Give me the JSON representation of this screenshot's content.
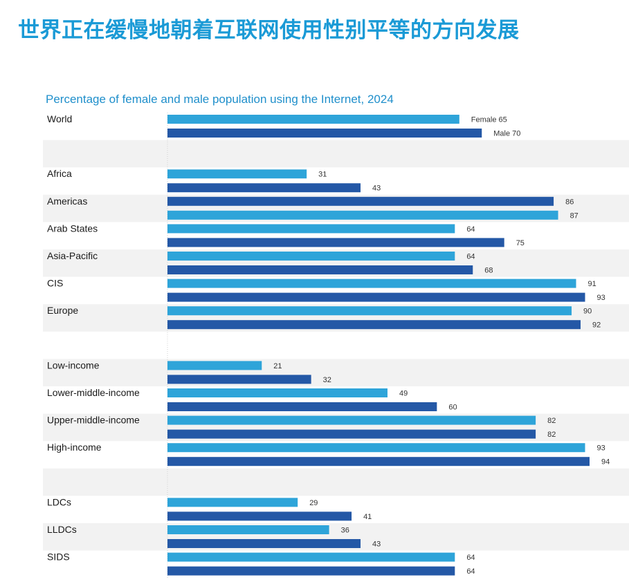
{
  "title": "世界正在缓慢地朝着互联网使用性别平等的方向发展",
  "chart_data": {
    "type": "bar",
    "orientation": "horizontal",
    "title": "Percentage of female and male population using the Internet, 2024",
    "xlim": [
      0,
      100
    ],
    "colors": {
      "light": "#2ea4d9",
      "dark": "#2458a6"
    },
    "groups": [
      {
        "category": "World",
        "bars": [
          {
            "label": "Female",
            "value": 65,
            "color": "light"
          },
          {
            "label": "Male",
            "value": 70,
            "color": "dark"
          }
        ]
      },
      {
        "category": "",
        "spacer": true
      },
      {
        "category": "Africa",
        "bars": [
          {
            "label": "",
            "value": 31,
            "color": "light"
          },
          {
            "label": "",
            "value": 43,
            "color": "dark"
          }
        ]
      },
      {
        "category": "Americas",
        "bars": [
          {
            "label": "",
            "value": 86,
            "color": "dark"
          },
          {
            "label": "",
            "value": 87,
            "color": "light"
          }
        ]
      },
      {
        "category": "Arab States",
        "bars": [
          {
            "label": "",
            "value": 64,
            "color": "light"
          },
          {
            "label": "",
            "value": 75,
            "color": "dark"
          }
        ]
      },
      {
        "category": "Asia-Pacific",
        "bars": [
          {
            "label": "",
            "value": 64,
            "color": "light"
          },
          {
            "label": "",
            "value": 68,
            "color": "dark"
          }
        ]
      },
      {
        "category": "CIS",
        "bars": [
          {
            "label": "",
            "value": 91,
            "color": "light"
          },
          {
            "label": "",
            "value": 93,
            "color": "dark"
          }
        ]
      },
      {
        "category": "Europe",
        "bars": [
          {
            "label": "",
            "value": 90,
            "color": "light"
          },
          {
            "label": "",
            "value": 92,
            "color": "dark"
          }
        ]
      },
      {
        "category": "",
        "spacer": true
      },
      {
        "category": "Low-income",
        "bars": [
          {
            "label": "",
            "value": 21,
            "color": "light"
          },
          {
            "label": "",
            "value": 32,
            "color": "dark"
          }
        ]
      },
      {
        "category": "Lower-middle-income",
        "bars": [
          {
            "label": "",
            "value": 49,
            "color": "light"
          },
          {
            "label": "",
            "value": 60,
            "color": "dark"
          }
        ]
      },
      {
        "category": "Upper-middle-income",
        "bars": [
          {
            "label": "",
            "value": 82,
            "color": "light"
          },
          {
            "label": "",
            "value": 82,
            "color": "dark"
          }
        ]
      },
      {
        "category": "High-income",
        "bars": [
          {
            "label": "",
            "value": 93,
            "color": "light"
          },
          {
            "label": "",
            "value": 94,
            "color": "dark"
          }
        ]
      },
      {
        "category": "",
        "spacer": true
      },
      {
        "category": "LDCs",
        "bars": [
          {
            "label": "",
            "value": 29,
            "color": "light"
          },
          {
            "label": "",
            "value": 41,
            "color": "dark"
          }
        ]
      },
      {
        "category": "LLDCs",
        "bars": [
          {
            "label": "",
            "value": 36,
            "color": "light"
          },
          {
            "label": "",
            "value": 43,
            "color": "dark"
          }
        ]
      },
      {
        "category": "SIDS",
        "bars": [
          {
            "label": "",
            "value": 64,
            "color": "light"
          },
          {
            "label": "",
            "value": 64,
            "color": "dark"
          }
        ]
      }
    ]
  }
}
